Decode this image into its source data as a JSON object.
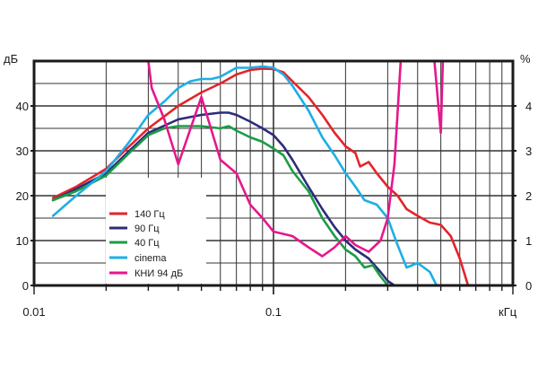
{
  "chart_data": {
    "type": "line",
    "x_scale": "log",
    "xlim": [
      0.01,
      1
    ],
    "ylim_left": [
      0,
      50
    ],
    "ylim_right": [
      0,
      5
    ],
    "xlabel": "кГц",
    "ylabel_left": "дБ",
    "ylabel_right": "%",
    "x_tick_labels": [
      {
        "x": 0.01,
        "label": "0.01"
      },
      {
        "x": 0.1,
        "label": "0.1"
      }
    ],
    "y_left_ticks": [
      0,
      10,
      20,
      30,
      40
    ],
    "y_right_ticks": [
      0,
      1,
      2,
      3,
      4
    ],
    "grid": true,
    "legend_position": "lower-left",
    "series": [
      {
        "name": "140 Гц",
        "color": "#e3242b",
        "axis": "left",
        "points": [
          [
            0.012,
            19.5
          ],
          [
            0.015,
            22
          ],
          [
            0.02,
            26
          ],
          [
            0.025,
            31
          ],
          [
            0.03,
            35
          ],
          [
            0.04,
            40
          ],
          [
            0.05,
            43
          ],
          [
            0.06,
            45
          ],
          [
            0.07,
            47
          ],
          [
            0.08,
            48
          ],
          [
            0.09,
            48.3
          ],
          [
            0.1,
            48.2
          ],
          [
            0.11,
            47.5
          ],
          [
            0.12,
            45.5
          ],
          [
            0.14,
            42
          ],
          [
            0.16,
            38
          ],
          [
            0.18,
            34
          ],
          [
            0.2,
            31
          ],
          [
            0.22,
            29.5
          ],
          [
            0.23,
            26.5
          ],
          [
            0.25,
            27.5
          ],
          [
            0.27,
            25
          ],
          [
            0.3,
            22
          ],
          [
            0.33,
            20
          ],
          [
            0.36,
            17
          ],
          [
            0.4,
            15.5
          ],
          [
            0.45,
            14
          ],
          [
            0.5,
            13.5
          ],
          [
            0.55,
            11
          ],
          [
            0.6,
            6
          ],
          [
            0.65,
            0
          ]
        ]
      },
      {
        "name": "90 Гц",
        "color": "#2c2c7a",
        "axis": "left",
        "points": [
          [
            0.012,
            19
          ],
          [
            0.015,
            21.5
          ],
          [
            0.02,
            25
          ],
          [
            0.025,
            30
          ],
          [
            0.03,
            34
          ],
          [
            0.04,
            37
          ],
          [
            0.05,
            38
          ],
          [
            0.06,
            38.5
          ],
          [
            0.065,
            38.5
          ],
          [
            0.07,
            38
          ],
          [
            0.08,
            36.5
          ],
          [
            0.09,
            35
          ],
          [
            0.1,
            33.5
          ],
          [
            0.11,
            31
          ],
          [
            0.12,
            28
          ],
          [
            0.14,
            22
          ],
          [
            0.16,
            17
          ],
          [
            0.18,
            13
          ],
          [
            0.2,
            10
          ],
          [
            0.22,
            8
          ],
          [
            0.25,
            6
          ],
          [
            0.28,
            3
          ],
          [
            0.3,
            1
          ],
          [
            0.32,
            0
          ]
        ]
      },
      {
        "name": "40 Гц",
        "color": "#1c9c46",
        "axis": "left",
        "points": [
          [
            0.012,
            19
          ],
          [
            0.015,
            21
          ],
          [
            0.02,
            24.5
          ],
          [
            0.025,
            29.5
          ],
          [
            0.03,
            33.5
          ],
          [
            0.035,
            35
          ],
          [
            0.04,
            35.5
          ],
          [
            0.05,
            35.5
          ],
          [
            0.06,
            35
          ],
          [
            0.065,
            35.5
          ],
          [
            0.07,
            34.5
          ],
          [
            0.08,
            33
          ],
          [
            0.09,
            32
          ],
          [
            0.1,
            30.5
          ],
          [
            0.11,
            29
          ],
          [
            0.12,
            25.5
          ],
          [
            0.14,
            21
          ],
          [
            0.16,
            15
          ],
          [
            0.18,
            11
          ],
          [
            0.2,
            8
          ],
          [
            0.22,
            6.5
          ],
          [
            0.24,
            4
          ],
          [
            0.26,
            4.5
          ],
          [
            0.28,
            2
          ],
          [
            0.3,
            0
          ]
        ]
      },
      {
        "name": "cinema",
        "color": "#1eaee6",
        "axis": "left",
        "points": [
          [
            0.012,
            15.5
          ],
          [
            0.015,
            20
          ],
          [
            0.02,
            25.5
          ],
          [
            0.025,
            32
          ],
          [
            0.03,
            38
          ],
          [
            0.035,
            41
          ],
          [
            0.04,
            44
          ],
          [
            0.045,
            45.5
          ],
          [
            0.05,
            46
          ],
          [
            0.055,
            46
          ],
          [
            0.06,
            46.5
          ],
          [
            0.07,
            48.5
          ],
          [
            0.08,
            48.5
          ],
          [
            0.09,
            48.8
          ],
          [
            0.1,
            48.5
          ],
          [
            0.11,
            47
          ],
          [
            0.12,
            44.5
          ],
          [
            0.14,
            39
          ],
          [
            0.16,
            33
          ],
          [
            0.18,
            29
          ],
          [
            0.2,
            25
          ],
          [
            0.22,
            22
          ],
          [
            0.24,
            19
          ],
          [
            0.27,
            18
          ],
          [
            0.3,
            15
          ],
          [
            0.33,
            9
          ],
          [
            0.36,
            4
          ],
          [
            0.4,
            5
          ],
          [
            0.45,
            3
          ],
          [
            0.48,
            0
          ]
        ]
      },
      {
        "name": "КНИ 94 дБ",
        "color": "#e6178c",
        "axis": "right",
        "points": [
          [
            0.03,
            5
          ],
          [
            0.031,
            4.4
          ],
          [
            0.035,
            3.7
          ],
          [
            0.04,
            2.7
          ],
          [
            0.05,
            4.2
          ],
          [
            0.06,
            2.8
          ],
          [
            0.07,
            2.5
          ],
          [
            0.08,
            1.8
          ],
          [
            0.09,
            1.5
          ],
          [
            0.1,
            1.2
          ],
          [
            0.12,
            1.1
          ],
          [
            0.14,
            0.85
          ],
          [
            0.16,
            0.65
          ],
          [
            0.18,
            0.85
          ],
          [
            0.2,
            1.1
          ],
          [
            0.22,
            0.9
          ],
          [
            0.25,
            0.75
          ],
          [
            0.28,
            1
          ],
          [
            0.3,
            1.5
          ],
          [
            0.32,
            2.7
          ],
          [
            0.34,
            5
          ]
        ],
        "spike": [
          [
            0.47,
            5
          ],
          [
            0.5,
            3.4
          ],
          [
            0.51,
            5
          ]
        ]
      }
    ]
  }
}
